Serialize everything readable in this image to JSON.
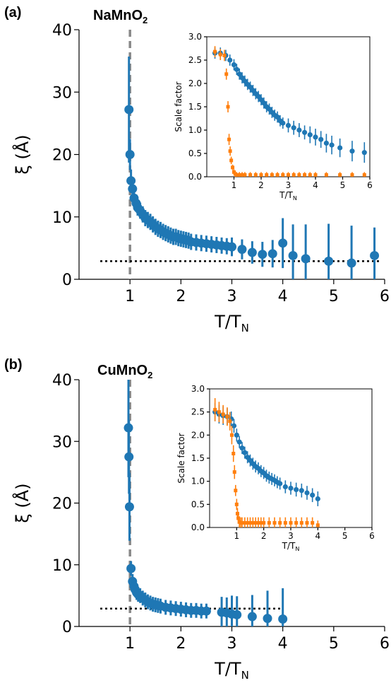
{
  "panels": {
    "a": {
      "label": "(a)",
      "title_main": "NaMnO",
      "title_sub": "2"
    },
    "b": {
      "label": "(b)",
      "title_main": "CuMnO",
      "title_sub": "2"
    }
  },
  "colors": {
    "blue": "#1f77b4",
    "orange": "#ff7f0e",
    "vline": "#888888",
    "hline": "#000000"
  },
  "chart_data": [
    {
      "id": "a-main",
      "type": "scatter",
      "xlabel": "T/T",
      "xlabel_sub": "N",
      "ylabel": "ξ (Å)",
      "xlim": [
        0,
        6
      ],
      "ylim": [
        0,
        40
      ],
      "xticks": [
        1,
        2,
        3,
        4,
        5,
        6
      ],
      "yticks": [
        0,
        10,
        20,
        30,
        40
      ],
      "vline_x": 1.0,
      "hline_y": 2.9,
      "hline_range": [
        0,
        5.9
      ],
      "series": [
        {
          "color": "blue",
          "x": [
            0.98,
            1.0,
            1.02,
            1.05,
            1.08,
            1.12,
            1.15,
            1.2,
            1.25,
            1.3,
            1.35,
            1.4,
            1.45,
            1.5,
            1.55,
            1.6,
            1.65,
            1.7,
            1.75,
            1.8,
            1.85,
            1.9,
            1.95,
            2.0,
            2.05,
            2.1,
            2.15,
            2.2,
            2.3,
            2.4,
            2.5,
            2.6,
            2.7,
            2.8,
            2.9,
            3.0,
            3.2,
            3.4,
            3.6,
            3.8,
            4.0,
            4.2,
            4.45,
            4.9,
            5.35,
            5.8
          ],
          "y": [
            27.2,
            20.0,
            15.8,
            14.5,
            13.0,
            12.2,
            11.5,
            11.0,
            10.4,
            9.8,
            9.5,
            9.2,
            8.8,
            8.4,
            8.1,
            7.9,
            7.6,
            7.4,
            7.2,
            7.0,
            6.8,
            6.8,
            6.6,
            6.5,
            6.4,
            6.3,
            6.2,
            6.0,
            5.9,
            5.8,
            5.7,
            5.6,
            5.5,
            5.4,
            5.3,
            5.2,
            4.8,
            4.3,
            4.0,
            4.1,
            5.8,
            3.8,
            3.3,
            2.9,
            2.6,
            3.8
          ],
          "err": [
            8.5,
            2.5,
            1.8,
            1.6,
            1.5,
            1.4,
            1.3,
            1.3,
            1.3,
            1.3,
            1.3,
            1.3,
            1.3,
            1.3,
            1.3,
            1.3,
            1.3,
            1.3,
            1.3,
            1.3,
            1.3,
            1.3,
            1.3,
            1.3,
            1.3,
            1.3,
            1.3,
            1.3,
            1.3,
            1.3,
            1.3,
            1.3,
            1.3,
            1.3,
            1.3,
            1.5,
            1.6,
            1.8,
            2.0,
            2.2,
            4.0,
            5.0,
            5.5,
            6.0,
            6.0,
            4.5
          ]
        }
      ]
    },
    {
      "id": "a-inset",
      "type": "scatter",
      "xlabel": "T/T",
      "xlabel_sub": "N",
      "ylabel": "Scale factor",
      "xlim": [
        0,
        6
      ],
      "ylim": [
        0,
        3.0
      ],
      "xticks": [
        1,
        2,
        3,
        4,
        5,
        6
      ],
      "yticks": [
        0.0,
        0.5,
        1.0,
        1.5,
        2.0,
        2.5,
        3.0
      ],
      "series": [
        {
          "color": "blue",
          "x": [
            0.3,
            0.5,
            0.7,
            0.85,
            1.0,
            1.1,
            1.2,
            1.3,
            1.4,
            1.5,
            1.6,
            1.7,
            1.8,
            1.9,
            2.0,
            2.1,
            2.2,
            2.3,
            2.4,
            2.5,
            2.6,
            2.7,
            2.8,
            3.0,
            3.2,
            3.4,
            3.6,
            3.8,
            4.0,
            4.2,
            4.4,
            4.6,
            4.9,
            5.35,
            5.8
          ],
          "y": [
            2.65,
            2.65,
            2.6,
            2.5,
            2.4,
            2.3,
            2.2,
            2.12,
            2.05,
            1.98,
            1.92,
            1.85,
            1.78,
            1.72,
            1.65,
            1.58,
            1.5,
            1.45,
            1.38,
            1.32,
            1.28,
            1.2,
            1.15,
            1.1,
            1.05,
            1.0,
            0.95,
            0.9,
            0.85,
            0.8,
            0.72,
            0.68,
            0.62,
            0.55,
            0.52
          ],
          "err": [
            0.12,
            0.12,
            0.12,
            0.12,
            0.12,
            0.12,
            0.12,
            0.12,
            0.12,
            0.12,
            0.12,
            0.12,
            0.12,
            0.12,
            0.12,
            0.12,
            0.12,
            0.12,
            0.12,
            0.12,
            0.12,
            0.12,
            0.12,
            0.15,
            0.15,
            0.15,
            0.15,
            0.18,
            0.18,
            0.18,
            0.2,
            0.2,
            0.2,
            0.22,
            0.22
          ]
        },
        {
          "color": "orange",
          "x": [
            0.3,
            0.5,
            0.65,
            0.72,
            0.78,
            0.82,
            0.86,
            0.9,
            0.95,
            1.0,
            1.05,
            1.1,
            1.2,
            1.3,
            1.4,
            1.6,
            1.8,
            2.0,
            2.2,
            2.4,
            2.6,
            2.8,
            3.0,
            3.2,
            3.4,
            3.6,
            3.8,
            4.0,
            4.4,
            4.9,
            5.35,
            5.8
          ],
          "y": [
            2.68,
            2.62,
            2.6,
            2.2,
            1.5,
            0.8,
            0.55,
            0.35,
            0.2,
            0.1,
            0.06,
            0.04,
            0.04,
            0.04,
            0.04,
            0.04,
            0.04,
            0.04,
            0.04,
            0.04,
            0.04,
            0.04,
            0.04,
            0.04,
            0.04,
            0.04,
            0.04,
            0.04,
            0.04,
            0.04,
            0.04,
            0.04
          ],
          "err": [
            0.12,
            0.12,
            0.12,
            0.12,
            0.12,
            0.12,
            0.1,
            0.08,
            0.06,
            0.06,
            0.06,
            0.06,
            0.06,
            0.06,
            0.06,
            0.06,
            0.06,
            0.06,
            0.06,
            0.06,
            0.06,
            0.06,
            0.06,
            0.06,
            0.06,
            0.06,
            0.06,
            0.06,
            0.06,
            0.06,
            0.06,
            0.06
          ]
        }
      ]
    },
    {
      "id": "b-main",
      "type": "scatter",
      "xlabel": "T/T",
      "xlabel_sub": "N",
      "ylabel": "ξ (Å)",
      "xlim": [
        0,
        6
      ],
      "ylim": [
        0,
        40
      ],
      "xticks": [
        1,
        2,
        3,
        4,
        5,
        6
      ],
      "yticks": [
        0,
        10,
        20,
        30,
        40
      ],
      "vline_x": 1.0,
      "hline_y": 2.9,
      "hline_range": [
        0,
        4.0
      ],
      "series": [
        {
          "color": "blue",
          "x": [
            0.97,
            0.98,
            0.99,
            1.02,
            1.05,
            1.08,
            1.1,
            1.13,
            1.16,
            1.2,
            1.25,
            1.3,
            1.35,
            1.4,
            1.45,
            1.5,
            1.55,
            1.6,
            1.7,
            1.8,
            1.9,
            2.0,
            2.1,
            2.2,
            2.3,
            2.4,
            2.5,
            2.8,
            2.9,
            3.0,
            3.1,
            3.4,
            3.7,
            4.0
          ],
          "y": [
            32.2,
            27.5,
            19.4,
            9.4,
            7.3,
            6.5,
            6.0,
            5.5,
            5.2,
            5.0,
            4.6,
            4.3,
            4.0,
            3.8,
            3.6,
            3.5,
            3.4,
            3.3,
            3.1,
            3.0,
            2.9,
            2.8,
            2.7,
            2.6,
            2.6,
            2.5,
            2.5,
            2.3,
            2.2,
            2.0,
            1.9,
            1.6,
            1.3,
            1.2
          ],
          "err": [
            8.0,
            6.0,
            5.5,
            1.2,
            1.2,
            1.2,
            1.2,
            1.2,
            1.2,
            1.2,
            1.2,
            1.2,
            1.2,
            1.2,
            1.2,
            1.2,
            1.2,
            1.2,
            1.2,
            1.2,
            1.2,
            1.2,
            1.2,
            1.2,
            1.2,
            1.2,
            1.2,
            2.5,
            2.5,
            3.0,
            3.0,
            3.5,
            4.5,
            5.0
          ]
        }
      ]
    },
    {
      "id": "b-inset",
      "type": "scatter",
      "xlabel": "T/T",
      "xlabel_sub": "N",
      "ylabel": "Scale factor",
      "xlim": [
        0,
        6
      ],
      "ylim": [
        0,
        3.0
      ],
      "xticks": [
        1,
        2,
        3,
        4,
        5,
        6
      ],
      "yticks": [
        0.0,
        0.5,
        1.0,
        1.5,
        2.0,
        2.5,
        3.0
      ],
      "series": [
        {
          "color": "blue",
          "x": [
            0.2,
            0.35,
            0.5,
            0.65,
            0.8,
            0.9,
            1.0,
            1.1,
            1.2,
            1.3,
            1.4,
            1.5,
            1.6,
            1.7,
            1.8,
            1.9,
            2.0,
            2.1,
            2.2,
            2.3,
            2.4,
            2.5,
            2.6,
            2.8,
            3.0,
            3.2,
            3.4,
            3.6,
            3.8,
            4.0
          ],
          "y": [
            2.5,
            2.45,
            2.42,
            2.4,
            2.35,
            2.2,
            2.0,
            1.85,
            1.72,
            1.62,
            1.52,
            1.45,
            1.38,
            1.32,
            1.28,
            1.22,
            1.18,
            1.12,
            1.08,
            1.05,
            1.02,
            0.98,
            0.95,
            0.88,
            0.85,
            0.82,
            0.8,
            0.75,
            0.7,
            0.62
          ],
          "err": [
            0.2,
            0.2,
            0.2,
            0.18,
            0.16,
            0.15,
            0.14,
            0.13,
            0.13,
            0.13,
            0.13,
            0.13,
            0.13,
            0.13,
            0.13,
            0.13,
            0.13,
            0.13,
            0.13,
            0.13,
            0.13,
            0.13,
            0.13,
            0.14,
            0.14,
            0.15,
            0.15,
            0.15,
            0.15,
            0.16
          ]
        },
        {
          "color": "orange",
          "x": [
            0.2,
            0.35,
            0.5,
            0.65,
            0.75,
            0.82,
            0.88,
            0.92,
            0.96,
            1.0,
            1.03,
            1.06,
            1.1,
            1.15,
            1.2,
            1.3,
            1.4,
            1.5,
            1.6,
            1.7,
            1.8,
            1.9,
            2.0,
            2.2,
            2.4,
            2.6,
            2.8,
            3.0,
            3.2,
            3.4,
            3.6,
            3.8,
            4.0
          ],
          "y": [
            2.55,
            2.5,
            2.45,
            2.4,
            2.3,
            2.0,
            1.6,
            1.2,
            0.8,
            0.5,
            0.3,
            0.2,
            0.12,
            0.1,
            0.1,
            0.1,
            0.1,
            0.1,
            0.1,
            0.1,
            0.1,
            0.1,
            0.1,
            0.1,
            0.1,
            0.1,
            0.1,
            0.1,
            0.1,
            0.1,
            0.1,
            0.1,
            0.05
          ],
          "err": [
            0.25,
            0.22,
            0.2,
            0.2,
            0.2,
            0.2,
            0.18,
            0.15,
            0.12,
            0.12,
            0.12,
            0.12,
            0.12,
            0.12,
            0.12,
            0.12,
            0.12,
            0.12,
            0.12,
            0.12,
            0.12,
            0.12,
            0.12,
            0.12,
            0.12,
            0.12,
            0.12,
            0.12,
            0.12,
            0.12,
            0.12,
            0.12,
            0.1
          ]
        }
      ]
    }
  ]
}
